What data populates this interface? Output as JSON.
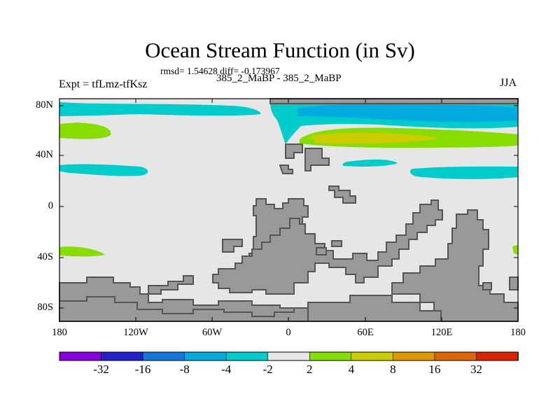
{
  "figure": {
    "title": "Ocean Stream Function (in Sv)",
    "stats": "rmsd= 1.54628 diff= -0.173967",
    "left_label": "Expt = tfLmz-tfKsz",
    "center_label": "385_2_MaBP - 385_2_MaBP",
    "right_label": "JJA"
  },
  "map": {
    "lon_range": [
      -180,
      180
    ],
    "lat_range": [
      -90,
      90
    ],
    "lat_ticks": [
      {
        "value": 80,
        "label": "80N"
      },
      {
        "value": 40,
        "label": "40N"
      },
      {
        "value": 0,
        "label": "0"
      },
      {
        "value": -40,
        "label": "40S"
      },
      {
        "value": -80,
        "label": "80S"
      }
    ],
    "lon_ticks": [
      {
        "value": -180,
        "label": "180"
      },
      {
        "value": -120,
        "label": "120W"
      },
      {
        "value": -60,
        "label": "60W"
      },
      {
        "value": 0,
        "label": "0"
      },
      {
        "value": 60,
        "label": "60E"
      },
      {
        "value": 120,
        "label": "120E"
      },
      {
        "value": 180,
        "label": "180"
      }
    ],
    "colors": {
      "background_field": "#e6e6e6",
      "land": "#999999",
      "land_outline": "#555555",
      "band_neg_4_to_2": "#00cccc",
      "band_neg_8_to_4": "#00aadd",
      "band_2_to_4": "#88dd00",
      "band_4_to_8": "#cccc00"
    }
  },
  "colorbar": {
    "colors": [
      "#8800dd",
      "#2222cc",
      "#1177dd",
      "#00aadd",
      "#00cccc",
      "#e6e6e6",
      "#88dd00",
      "#cccc00",
      "#dd9900",
      "#dd6600",
      "#dd2200"
    ],
    "labels": [
      "-32",
      "-16",
      "-8",
      "-4",
      "-2",
      "2",
      "4",
      "8",
      "16",
      "32"
    ]
  }
}
